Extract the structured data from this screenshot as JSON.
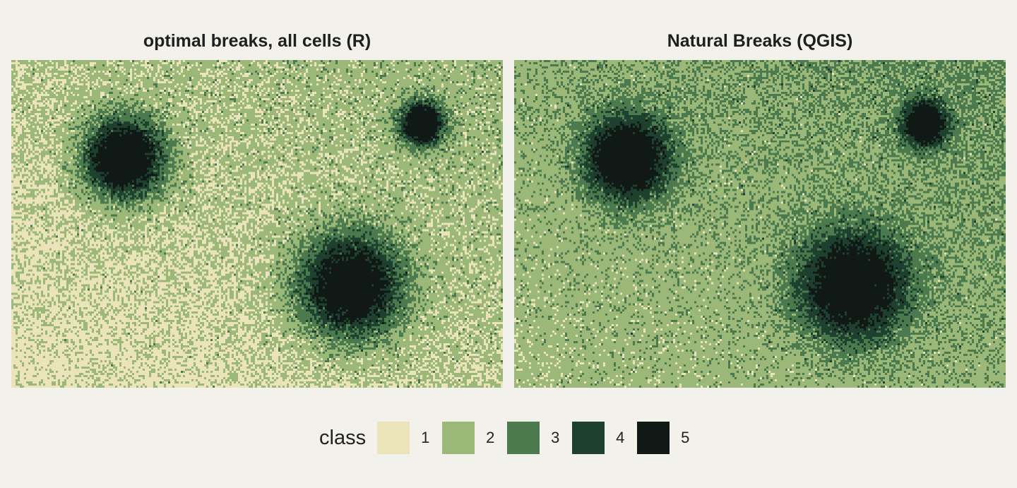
{
  "chart_data": [
    {
      "type": "heatmap",
      "title": "optimal breaks, all cells (R)",
      "grid": {
        "cols": 232,
        "rows": 155
      },
      "hotspots": [
        {
          "cx": 0.23,
          "cy": 0.3,
          "sigma": 0.085,
          "peak": 1.0
        },
        {
          "cx": 0.835,
          "cy": 0.195,
          "sigma": 0.045,
          "peak": 1.0
        },
        {
          "cx": 0.69,
          "cy": 0.69,
          "sigma": 0.11,
          "peak": 0.92
        }
      ],
      "background_gradient": {
        "top_right": 0.34,
        "bottom_left": 0.14
      },
      "noise": 0.09,
      "class_breaks": [
        0.22,
        0.42,
        0.62,
        0.8
      ],
      "legend_title": "class",
      "classes": [
        1,
        2,
        3,
        4,
        5
      ]
    },
    {
      "type": "heatmap",
      "title": "Natural Breaks (QGIS)",
      "grid": {
        "cols": 232,
        "rows": 155
      },
      "hotspots": [
        {
          "cx": 0.23,
          "cy": 0.3,
          "sigma": 0.085,
          "peak": 1.0
        },
        {
          "cx": 0.835,
          "cy": 0.195,
          "sigma": 0.045,
          "peak": 1.0
        },
        {
          "cx": 0.69,
          "cy": 0.69,
          "sigma": 0.11,
          "peak": 0.92
        }
      ],
      "background_gradient": {
        "top_right": 0.34,
        "bottom_left": 0.14
      },
      "noise": 0.09,
      "class_breaks": [
        0.05,
        0.3,
        0.5,
        0.72
      ],
      "legend_title": "class",
      "classes": [
        1,
        2,
        3,
        4,
        5
      ]
    }
  ],
  "legend": {
    "title": "class",
    "items": [
      {
        "label": "1",
        "color": "#ebe3b9"
      },
      {
        "label": "2",
        "color": "#9cb878"
      },
      {
        "label": "3",
        "color": "#4a7a4e"
      },
      {
        "label": "4",
        "color": "#1e402f"
      },
      {
        "label": "5",
        "color": "#111916"
      }
    ]
  }
}
